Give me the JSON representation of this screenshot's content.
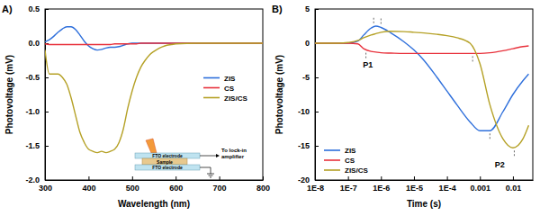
{
  "chart_data": [
    {
      "type": "line",
      "title": "A)",
      "x_label": "Wavelength (nm)",
      "y_label": "Photovoltage (mV)",
      "x": [
        300,
        310,
        320,
        330,
        340,
        350,
        360,
        370,
        380,
        390,
        400,
        410,
        420,
        430,
        440,
        450,
        460,
        470,
        480,
        490,
        500,
        510,
        520,
        530,
        540,
        550,
        560,
        570,
        580,
        590,
        600,
        650,
        700,
        750,
        800
      ],
      "series": [
        {
          "name": "ZIS",
          "color": "#2e6fdb",
          "values": [
            0.02,
            0.05,
            0.1,
            0.16,
            0.21,
            0.24,
            0.24,
            0.2,
            0.12,
            0.03,
            -0.04,
            -0.08,
            -0.1,
            -0.09,
            -0.07,
            -0.06,
            -0.06,
            -0.05,
            -0.03,
            -0.01,
            0,
            0,
            0,
            0,
            0,
            0,
            0,
            0,
            0,
            0,
            0,
            0,
            0,
            0,
            0
          ]
        },
        {
          "name": "CS",
          "color": "#e8323c",
          "values": [
            -0.01,
            -0.02,
            -0.02,
            -0.02,
            -0.02,
            -0.02,
            -0.02,
            -0.02,
            -0.02,
            -0.02,
            -0.02,
            -0.02,
            -0.02,
            -0.02,
            -0.02,
            -0.02,
            -0.01,
            -0.01,
            -0.01,
            -0.01,
            -0.01,
            -0.01,
            0,
            0,
            0,
            0,
            0,
            0,
            0,
            0,
            0,
            0,
            0,
            0,
            0
          ]
        },
        {
          "name": "ZIS/CS",
          "color": "#b5a126",
          "values": [
            -0.1,
            -0.45,
            -0.45,
            -0.45,
            -0.5,
            -0.6,
            -0.8,
            -1.05,
            -1.3,
            -1.45,
            -1.55,
            -1.58,
            -1.6,
            -1.58,
            -1.6,
            -1.58,
            -1.55,
            -1.45,
            -1.25,
            -0.95,
            -0.7,
            -0.5,
            -0.35,
            -0.25,
            -0.17,
            -0.12,
            -0.08,
            -0.05,
            -0.03,
            -0.02,
            -0.01,
            0,
            0,
            0,
            0
          ]
        }
      ],
      "xlim": [
        300,
        800
      ],
      "xticks": [
        300,
        400,
        500,
        600,
        700,
        800
      ],
      "ylim": [
        -2.0,
        0.5
      ],
      "yticks": [
        0.5,
        {
          "value": 0,
          "label": "0.0"
        },
        -0.5,
        {
          "value": -1,
          "label": "-1.0"
        },
        -1.5,
        {
          "value": -2,
          "label": "-2.0"
        }
      ],
      "legend": "right",
      "inset_labels": [
        "FTO electrode",
        "Sample",
        "FTO electrode",
        "To lock-in amplifier"
      ]
    },
    {
      "type": "line",
      "title": "B)",
      "x_label": "Time (s)",
      "y_label": "Photovoltage (mV)",
      "log": "x",
      "x": [
        1e-08,
        2e-08,
        5e-08,
        1e-07,
        2e-07,
        3e-07,
        5e-07,
        7e-07,
        1e-06,
        2e-06,
        5e-06,
        1e-05,
        2e-05,
        5e-05,
        0.0001,
        0.0002,
        0.0005,
        0.001,
        0.002,
        0.005,
        0.01,
        0.02,
        0.03
      ],
      "series": [
        {
          "name": "ZIS",
          "color": "#2e6fdb",
          "values": [
            0,
            0,
            0,
            0,
            0.3,
            1.2,
            2.2,
            2.5,
            2.3,
            1.5,
            0.2,
            -1.0,
            -2.5,
            -5.0,
            -7.0,
            -9.0,
            -11.5,
            -12.8,
            -12.8,
            -10,
            -7.5,
            -5.5,
            -4.5
          ]
        },
        {
          "name": "CS",
          "color": "#e8323c",
          "values": [
            0,
            0,
            0,
            0,
            -0.1,
            -0.8,
            -1.2,
            -1.3,
            -1.4,
            -1.45,
            -1.5,
            -1.5,
            -1.5,
            -1.5,
            -1.5,
            -1.5,
            -1.5,
            -1.5,
            -1.4,
            -1.1,
            -0.8,
            -0.5,
            -0.4
          ]
        },
        {
          "name": "ZIS/CS",
          "color": "#b5a126",
          "values": [
            0,
            0,
            0,
            0.1,
            0.4,
            0.8,
            1.2,
            1.4,
            1.6,
            1.75,
            1.7,
            1.6,
            1.5,
            1.3,
            1.1,
            0.8,
            0,
            -3,
            -9,
            -14,
            -15.3,
            -14,
            -12
          ]
        }
      ],
      "xlim": [
        1e-08,
        0.04
      ],
      "xticks": [
        {
          "value": 1e-08,
          "label": "1E-8"
        },
        {
          "value": 1e-07,
          "label": "1E-7"
        },
        {
          "value": 1e-06,
          "label": "1E-6"
        },
        {
          "value": 1e-05,
          "label": "1E-5"
        },
        {
          "value": 0.0001,
          "label": "1E-4"
        },
        0.001,
        0.01
      ],
      "ylim": [
        -20,
        5
      ],
      "yticks": [
        5,
        0,
        -5,
        -10,
        -15,
        -20
      ],
      "legend": "lower left",
      "peaks": [
        {
          "x": 3.5e-07,
          "y": -1.0
        },
        {
          "x": 6e-07,
          "y": 2.4
        },
        {
          "x": 1e-06,
          "y": 2.3
        },
        {
          "x": 0.0006,
          "y": -1.5
        },
        {
          "x": 0.002,
          "y": -12.8
        },
        {
          "x": 0.011,
          "y": -15.3
        }
      ],
      "annotations": [
        {
          "text": "P1",
          "x": 4e-07,
          "y": -3.6
        },
        {
          "text": "P2",
          "x": 0.004,
          "y": -18.2
        }
      ]
    }
  ]
}
